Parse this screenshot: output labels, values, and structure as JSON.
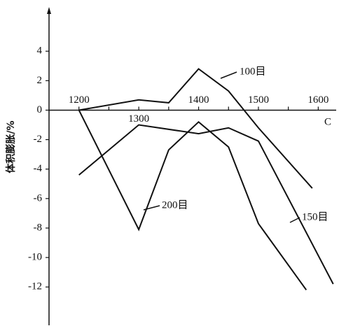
{
  "chart_data": {
    "type": "line",
    "y_label": "体积膨胀/%",
    "x_label": "C",
    "xlim": [
      1150,
      1630
    ],
    "ylim": [
      -14.6,
      7
    ],
    "xticks": [
      1200,
      1300,
      1400,
      1500,
      1600
    ],
    "xminorticks": [
      1250,
      1350,
      1450,
      1550
    ],
    "yticks": [
      4,
      2,
      0,
      -2,
      -4,
      -6,
      -8,
      -10,
      -12
    ],
    "color": "#111111",
    "series": [
      {
        "name": "100目",
        "x": [
          1200,
          1300,
          1350,
          1400,
          1450,
          1500,
          1590
        ],
        "values": [
          0,
          0.7,
          0.5,
          2.8,
          1.3,
          -1.2,
          -5.3
        ]
      },
      {
        "name": "150目",
        "x": [
          1200,
          1300,
          1400,
          1450,
          1500,
          1625
        ],
        "values": [
          -4.4,
          -1.0,
          -1.6,
          -1.2,
          -2.1,
          -11.8
        ]
      },
      {
        "name": "200目",
        "x": [
          1200,
          1300,
          1350,
          1400,
          1450,
          1500,
          1580
        ],
        "values": [
          0,
          -8.1,
          -2.7,
          -0.8,
          -2.5,
          -7.7,
          -12.2
        ]
      }
    ]
  }
}
